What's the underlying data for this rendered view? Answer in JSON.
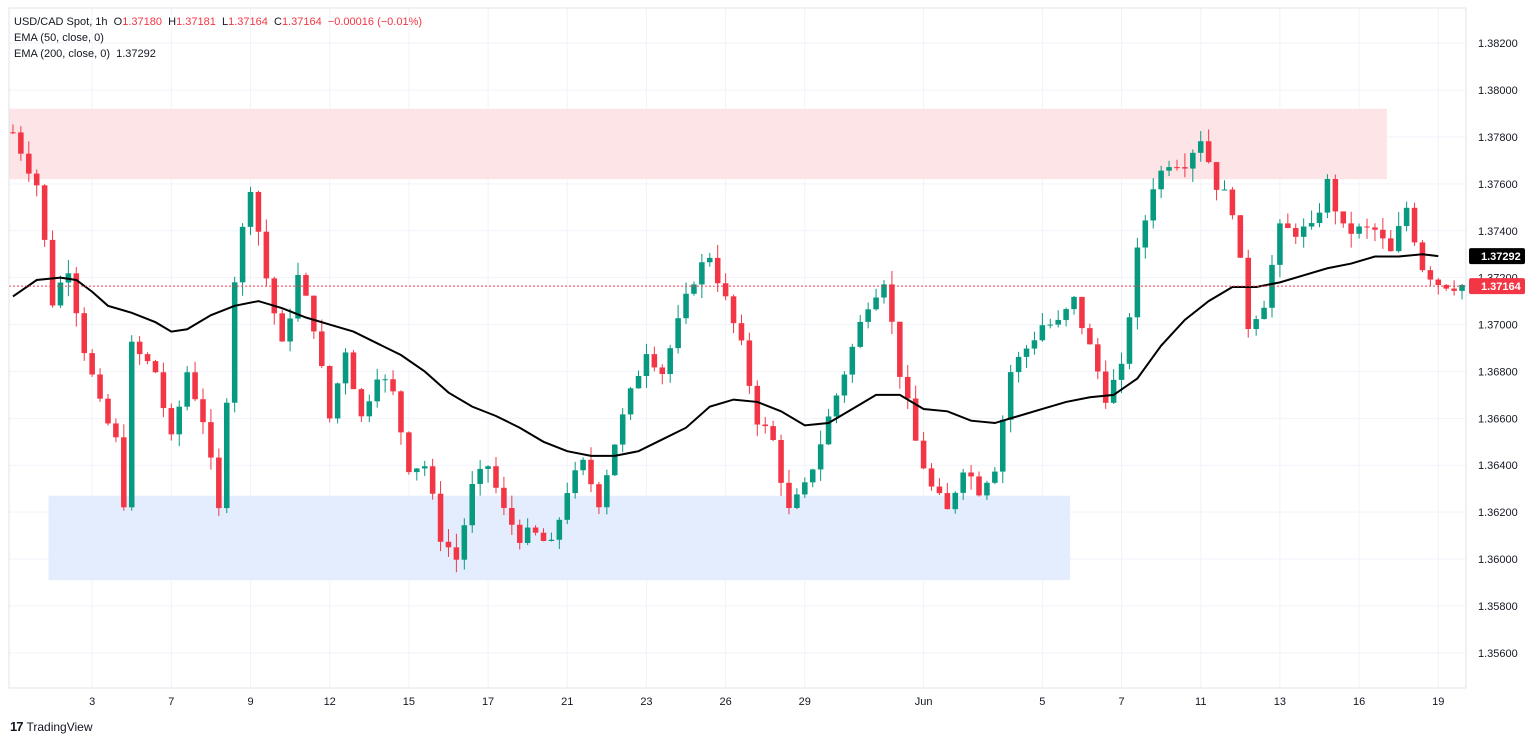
{
  "header": {
    "symbol": "USD/CAD Spot, 1h",
    "ohlc": {
      "o_label": "O",
      "o": "1.37180",
      "h_label": "H",
      "h": "1.37181",
      "l_label": "L",
      "l": "1.37164",
      "c_label": "C",
      "c": "1.37164",
      "change": "−0.00016 (−0.01%)"
    },
    "ema50": "EMA (50, close, 0)",
    "ema200_label": "EMA (200, close, 0)",
    "ema200_value": "1.37292"
  },
  "branding": {
    "logo_text": "TradingView"
  },
  "colors": {
    "up": "#089981",
    "down": "#f23645",
    "ema": "#000000",
    "resistance_zone": "#fde4e6",
    "support_zone": "#e3edfd",
    "grid": "#f0f3fa"
  },
  "chart_data": {
    "type": "candlestick",
    "title": "USD/CAD Spot, 1h",
    "y_ticks": [
      "1.38200",
      "1.38000",
      "1.37800",
      "1.37600",
      "1.37400",
      "1.37200",
      "1.37000",
      "1.36800",
      "1.36600",
      "1.36400",
      "1.36200",
      "1.36000",
      "1.35800",
      "1.35600"
    ],
    "ylim": [
      1.3545,
      1.3835
    ],
    "x_ticks": [
      "3",
      "7",
      "9",
      "12",
      "15",
      "17",
      "21",
      "23",
      "26",
      "29",
      "Jun",
      "5",
      "7",
      "11",
      "13",
      "16",
      "19"
    ],
    "x_tick_index": [
      10,
      20,
      30,
      40,
      50,
      60,
      70,
      80,
      90,
      100,
      115,
      130,
      140,
      150,
      160,
      170,
      180
    ],
    "x_count": 184,
    "price_labels": [
      {
        "name": "EMA (200, close, 0)",
        "value": 1.37292,
        "text": "1.37292",
        "color": "#000000"
      },
      {
        "name": "Last close",
        "value": 1.37164,
        "text": "1.37164",
        "color": "#f23645"
      }
    ],
    "zones": [
      {
        "name": "Resistance",
        "y_from": 1.3762,
        "y_to": 1.3792,
        "x_from": 0,
        "x_to": 173,
        "color": "#fde4e6"
      },
      {
        "name": "Support",
        "y_from": 1.3591,
        "y_to": 1.3627,
        "x_from": 5,
        "x_to": 133,
        "color": "#e3edfd"
      }
    ],
    "close_path": [
      [
        0,
        1.3782
      ],
      [
        3,
        1.376
      ],
      [
        5,
        1.371
      ],
      [
        7,
        1.3725
      ],
      [
        9,
        1.369
      ],
      [
        11,
        1.3665
      ],
      [
        13,
        1.365
      ],
      [
        14,
        1.3625
      ],
      [
        15,
        1.369
      ],
      [
        18,
        1.368
      ],
      [
        20,
        1.365
      ],
      [
        22,
        1.368
      ],
      [
        24,
        1.366
      ],
      [
        26,
        1.362
      ],
      [
        28,
        1.372
      ],
      [
        30,
        1.376
      ],
      [
        32,
        1.372
      ],
      [
        34,
        1.369
      ],
      [
        36,
        1.372
      ],
      [
        38,
        1.37
      ],
      [
        40,
        1.366
      ],
      [
        42,
        1.369
      ],
      [
        44,
        1.366
      ],
      [
        46,
        1.368
      ],
      [
        48,
        1.367
      ],
      [
        50,
        1.364
      ],
      [
        52,
        1.364
      ],
      [
        54,
        1.361
      ],
      [
        56,
        1.36
      ],
      [
        58,
        1.363
      ],
      [
        60,
        1.364
      ],
      [
        62,
        1.362
      ],
      [
        64,
        1.361
      ],
      [
        66,
        1.361
      ],
      [
        68,
        1.3605
      ],
      [
        70,
        1.363
      ],
      [
        72,
        1.364
      ],
      [
        74,
        1.3625
      ],
      [
        76,
        1.365
      ],
      [
        78,
        1.367
      ],
      [
        80,
        1.369
      ],
      [
        82,
        1.368
      ],
      [
        84,
        1.37
      ],
      [
        86,
        1.372
      ],
      [
        88,
        1.373
      ],
      [
        90,
        1.371
      ],
      [
        92,
        1.369
      ],
      [
        94,
        1.366
      ],
      [
        96,
        1.365
      ],
      [
        98,
        1.362
      ],
      [
        100,
        1.363
      ],
      [
        102,
        1.365
      ],
      [
        104,
        1.367
      ],
      [
        106,
        1.369
      ],
      [
        108,
        1.371
      ],
      [
        110,
        1.372
      ],
      [
        112,
        1.368
      ],
      [
        114,
        1.365
      ],
      [
        116,
        1.363
      ],
      [
        118,
        1.362
      ],
      [
        120,
        1.364
      ],
      [
        122,
        1.363
      ],
      [
        124,
        1.364
      ],
      [
        126,
        1.368
      ],
      [
        128,
        1.369
      ],
      [
        130,
        1.37
      ],
      [
        132,
        1.37
      ],
      [
        134,
        1.371
      ],
      [
        136,
        1.369
      ],
      [
        138,
        1.367
      ],
      [
        140,
        1.368
      ],
      [
        142,
        1.373
      ],
      [
        144,
        1.376
      ],
      [
        146,
        1.377
      ],
      [
        148,
        1.377
      ],
      [
        150,
        1.378
      ],
      [
        152,
        1.376
      ],
      [
        154,
        1.375
      ],
      [
        156,
        1.37
      ],
      [
        158,
        1.371
      ],
      [
        160,
        1.374
      ],
      [
        162,
        1.374
      ],
      [
        164,
        1.374
      ],
      [
        166,
        1.376
      ],
      [
        168,
        1.374
      ],
      [
        170,
        1.374
      ],
      [
        172,
        1.374
      ],
      [
        174,
        1.373
      ],
      [
        176,
        1.375
      ],
      [
        178,
        1.3725
      ],
      [
        180,
        1.3718
      ],
      [
        184,
        1.37164
      ]
    ],
    "ema200_path": [
      [
        0,
        1.3712
      ],
      [
        3,
        1.3719
      ],
      [
        6,
        1.372
      ],
      [
        8,
        1.3719
      ],
      [
        10,
        1.3714
      ],
      [
        12,
        1.3708
      ],
      [
        15,
        1.3705
      ],
      [
        18,
        1.3701
      ],
      [
        20,
        1.3697
      ],
      [
        22,
        1.3698
      ],
      [
        25,
        1.3704
      ],
      [
        28,
        1.3708
      ],
      [
        31,
        1.371
      ],
      [
        34,
        1.3707
      ],
      [
        37,
        1.3703
      ],
      [
        40,
        1.37
      ],
      [
        43,
        1.3697
      ],
      [
        46,
        1.3692
      ],
      [
        49,
        1.3687
      ],
      [
        52,
        1.368
      ],
      [
        55,
        1.3671
      ],
      [
        58,
        1.3665
      ],
      [
        61,
        1.3661
      ],
      [
        64,
        1.3656
      ],
      [
        67,
        1.365
      ],
      [
        70,
        1.3646
      ],
      [
        73,
        1.3644
      ],
      [
        76,
        1.3644
      ],
      [
        79,
        1.3646
      ],
      [
        82,
        1.3651
      ],
      [
        85,
        1.3656
      ],
      [
        88,
        1.3665
      ],
      [
        91,
        1.3668
      ],
      [
        94,
        1.3667
      ],
      [
        97,
        1.3663
      ],
      [
        100,
        1.3657
      ],
      [
        103,
        1.3658
      ],
      [
        106,
        1.3664
      ],
      [
        109,
        1.367
      ],
      [
        112,
        1.367
      ],
      [
        115,
        1.3664
      ],
      [
        118,
        1.3663
      ],
      [
        121,
        1.3659
      ],
      [
        124,
        1.3658
      ],
      [
        127,
        1.3661
      ],
      [
        130,
        1.3664
      ],
      [
        133,
        1.3667
      ],
      [
        136,
        1.3669
      ],
      [
        139,
        1.367
      ],
      [
        142,
        1.3677
      ],
      [
        145,
        1.3691
      ],
      [
        148,
        1.3702
      ],
      [
        151,
        1.371
      ],
      [
        154,
        1.3716
      ],
      [
        157,
        1.3716
      ],
      [
        160,
        1.3718
      ],
      [
        163,
        1.3721
      ],
      [
        166,
        1.3724
      ],
      [
        169,
        1.3726
      ],
      [
        172,
        1.3729
      ],
      [
        175,
        1.3729
      ],
      [
        178,
        1.373
      ],
      [
        180,
        1.37292
      ]
    ]
  }
}
